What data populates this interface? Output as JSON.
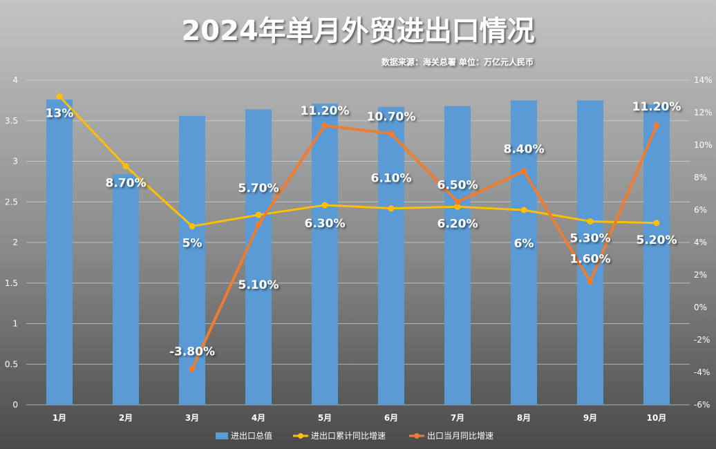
{
  "chart_data": {
    "type": "bar",
    "title": "2024年单月外贸进出口情况",
    "subtitle": "数据来源：海关总署 单位：万亿元人民币",
    "categories": [
      "1月",
      "2月",
      "3月",
      "4月",
      "5月",
      "6月",
      "7月",
      "8月",
      "9月",
      "10月"
    ],
    "series": [
      {
        "name": "进出口总值",
        "type": "bar",
        "axis": "left",
        "color": "#5b9bd5",
        "values": [
          3.76,
          2.84,
          3.56,
          3.64,
          3.71,
          3.67,
          3.68,
          3.75,
          3.75,
          3.7
        ]
      },
      {
        "name": "进出口累计同比增速",
        "type": "line",
        "axis": "right",
        "color": "#ffc000",
        "values": [
          13,
          8.7,
          5,
          5.7,
          6.3,
          6.1,
          6.2,
          6,
          5.3,
          5.2
        ],
        "labels": [
          "13%",
          "8.70%",
          "5%",
          "5.70%",
          "6.30%",
          "6.10%",
          "6.20%",
          "6%",
          "5.30%",
          "5.20%"
        ]
      },
      {
        "name": "出口当月同比增速",
        "type": "line",
        "axis": "right",
        "color": "#ed7d31",
        "values": [
          null,
          null,
          -3.8,
          5.1,
          11.2,
          10.7,
          6.5,
          8.4,
          1.6,
          11.2
        ],
        "labels": [
          null,
          null,
          "-3.80%",
          "5.10%",
          "11.20%",
          "10.70%",
          "6.50%",
          "8.40%",
          "1.60%",
          "11.20%"
        ]
      }
    ],
    "y_left": {
      "min": 0,
      "max": 4,
      "ticks": [
        "0",
        "0.5",
        "1",
        "1.5",
        "2",
        "2.5",
        "3",
        "3.5",
        "4"
      ]
    },
    "y_right": {
      "min": -6,
      "max": 14,
      "ticks": [
        "-6%",
        "-4%",
        "-2%",
        "0%",
        "2%",
        "4%",
        "6%",
        "8%",
        "10%",
        "12%",
        "14%"
      ]
    },
    "grid": true,
    "legend_position": "bottom"
  }
}
